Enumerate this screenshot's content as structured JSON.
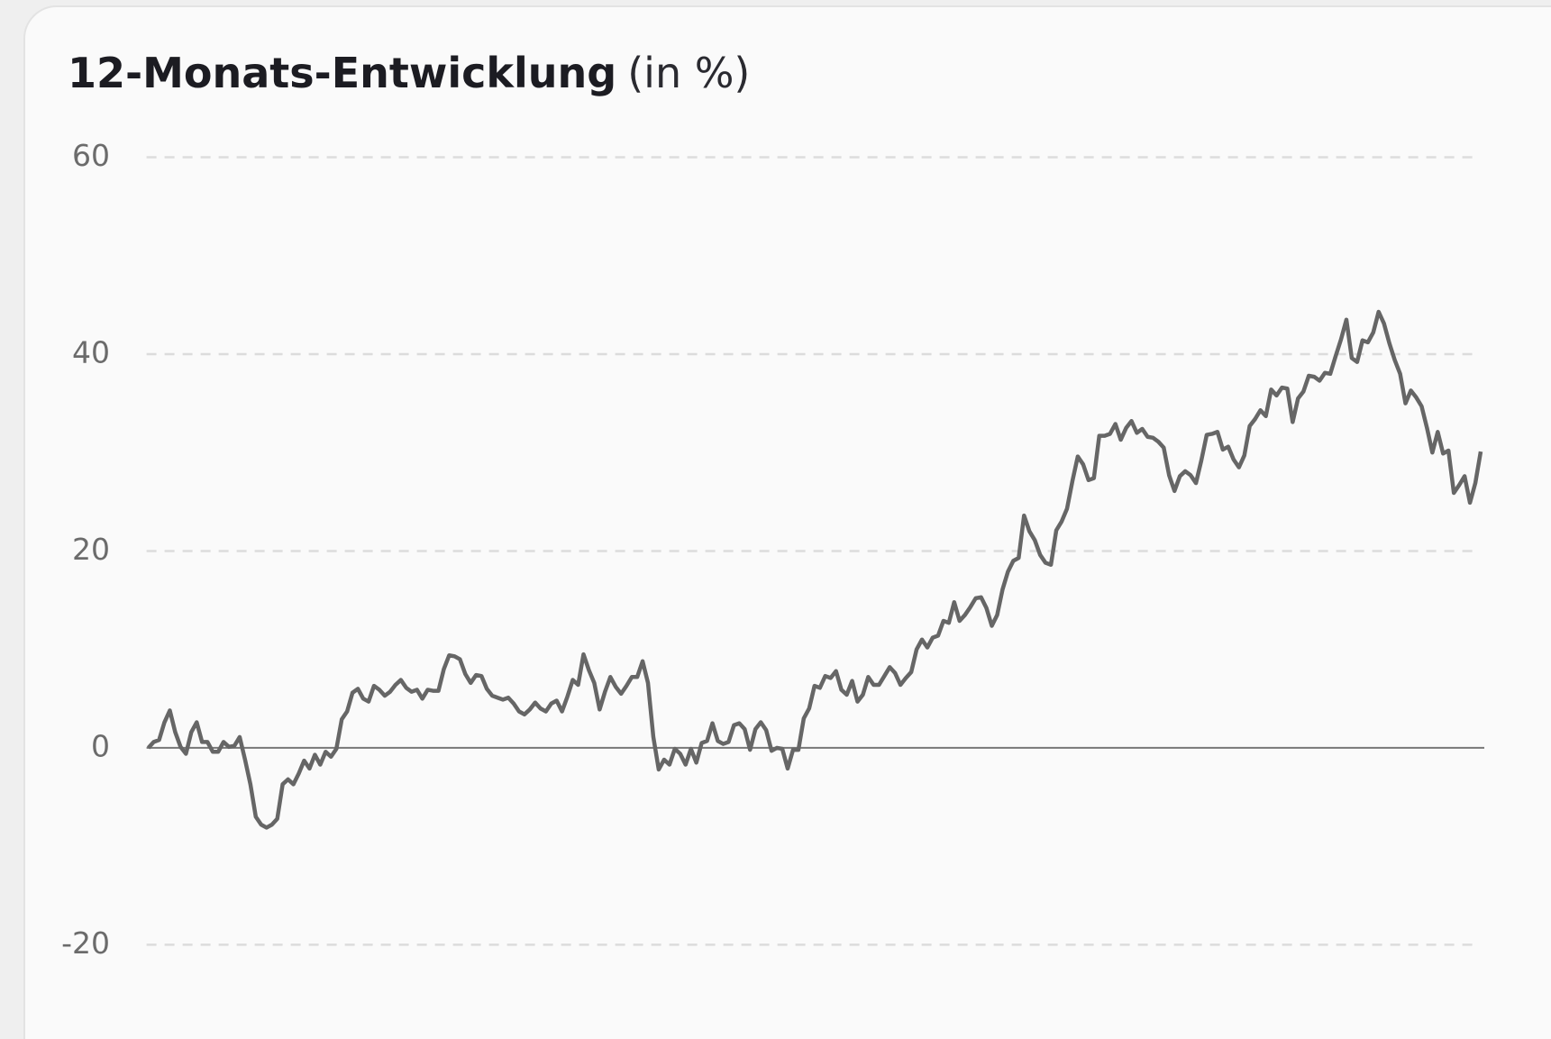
{
  "chart_data": {
    "type": "line",
    "title": "12-Monats-Entwicklung",
    "unit": "(in %)",
    "color": "#666666",
    "grid": true,
    "ylim": [
      -20,
      60
    ],
    "yticks": [
      -20,
      0,
      20,
      40,
      60
    ],
    "values": [
      0,
      0.6,
      0.8,
      2.6,
      3.8,
      1.6,
      0.1,
      -0.6,
      1.6,
      2.6,
      0.6,
      0.6,
      -0.4,
      -0.4,
      0.6,
      0.1,
      0.2,
      1.1,
      -1.2,
      -3.7,
      -7.0,
      -7.8,
      -8.1,
      -7.8,
      -7.2,
      -3.7,
      -3.2,
      -3.7,
      -2.6,
      -1.3,
      -2.1,
      -0.7,
      -1.7,
      -0.4,
      -0.9,
      -0.1,
      2.9,
      3.7,
      5.6,
      6.0,
      5.0,
      4.7,
      6.3,
      5.9,
      5.3,
      5.7,
      6.4,
      6.9,
      6.1,
      5.7,
      5.9,
      5.0,
      5.9,
      5.8,
      5.8,
      8.0,
      9.4,
      9.3,
      9.0,
      7.5,
      6.6,
      7.4,
      7.3,
      6.0,
      5.3,
      5.1,
      4.9,
      5.1,
      4.5,
      3.7,
      3.4,
      3.9,
      4.6,
      4.0,
      3.7,
      4.5,
      4.8,
      3.7,
      5.2,
      6.9,
      6.4,
      9.5,
      7.9,
      6.6,
      3.9,
      5.7,
      7.2,
      6.2,
      5.5,
      6.3,
      7.2,
      7.2,
      8.8,
      6.6,
      1.1,
      -2.2,
      -1.2,
      -1.7,
      -0.1,
      -0.6,
      -1.7,
      -0.1,
      -1.5,
      0.5,
      0.7,
      2.5,
      0.7,
      0.4,
      0.6,
      2.3,
      2.5,
      1.9,
      -0.2,
      1.9,
      2.6,
      1.8,
      -0.3,
      0,
      -0.1,
      -2.1,
      -0.2,
      -0.2,
      3.0,
      4.0,
      6.3,
      6.1,
      7.3,
      7.1,
      7.8,
      5.9,
      5.4,
      6.8,
      4.7,
      5.4,
      7.2,
      6.4,
      6.4,
      7.3,
      8.2,
      7.6,
      6.4,
      7.1,
      7.7,
      10.0,
      11.0,
      10.2,
      11.2,
      11.4,
      12.9,
      12.7,
      14.8,
      12.9,
      13.5,
      14.3,
      15.2,
      15.3,
      14.2,
      12.4,
      13.5,
      16.1,
      17.9,
      19.0,
      19.3,
      23.6,
      22.0,
      21.1,
      19.6,
      18.8,
      18.6,
      22.1,
      23.0,
      24.3,
      27.1,
      29.6,
      28.8,
      27.2,
      27.4,
      31.7,
      31.7,
      31.9,
      32.9,
      31.3,
      32.5,
      33.2,
      32.0,
      32.4,
      31.6,
      31.5,
      31.1,
      30.5,
      27.7,
      26.1,
      27.6,
      28.1,
      27.7,
      26.9,
      29.2,
      31.8,
      31.9,
      32.1,
      30.3,
      30.6,
      29.3,
      28.5,
      29.7,
      32.7,
      33.4,
      34.3,
      33.7,
      36.4,
      35.8,
      36.6,
      36.5,
      33.1,
      35.5,
      36.2,
      37.8,
      37.7,
      37.3,
      38.1,
      38.0,
      39.8,
      41.5,
      43.5,
      39.6,
      39.2,
      41.4,
      41.2,
      42.2,
      44.3,
      43.1,
      41.1,
      39.4,
      38.0,
      35.0,
      36.3,
      35.6,
      34.7,
      32.5,
      30.0,
      32.1,
      29.9,
      30.2,
      25.9,
      26.7,
      27.6,
      24.9,
      26.9,
      30.1
    ]
  }
}
